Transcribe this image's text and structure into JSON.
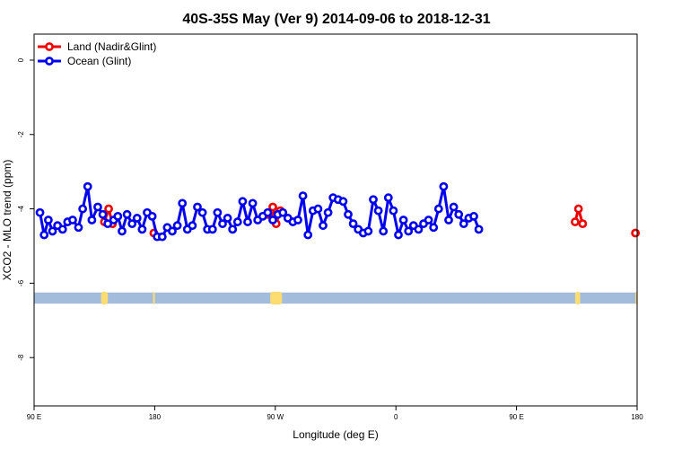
{
  "chart_data": {
    "type": "line",
    "title": "40S-35S May (Ver 9)   2014-09-06 to 2018-12-31",
    "xlabel": "Longitude (deg E)",
    "ylabel": "XCO2 - MLO trend (ppm)",
    "xlim": [
      90,
      450
    ],
    "ylim": [
      -9.3,
      0.7
    ],
    "x_ticks": [
      90,
      162,
      234,
      306,
      378,
      450
    ],
    "x_tick_labels": [
      "90 E",
      "180",
      "90 W",
      "0",
      "90 E",
      "180"
    ],
    "y_ticks": [
      0,
      -2,
      -4,
      -6,
      -8
    ],
    "y_tick_labels": [
      "0",
      "-2",
      "-4",
      "-6",
      "-8"
    ],
    "grid": false,
    "legend_position": "top-left",
    "series": [
      {
        "name": "Land (Nadir&Glint)",
        "color": "#ee0000",
        "segments": [
          [
            [
              132,
              -4.35
            ],
            [
              134.5,
              -4.0
            ],
            [
              136.8,
              -4.4
            ]
          ],
          [
            [
              161.5,
              -4.65
            ]
          ],
          [
            [
              230,
              -4.15
            ],
            [
              232.5,
              -3.95
            ],
            [
              234.5,
              -4.4
            ],
            [
              237,
              -4.05
            ]
          ],
          [
            [
              413,
              -4.35
            ],
            [
              415,
              -4.0
            ],
            [
              417.5,
              -4.4
            ]
          ],
          [
            [
              449,
              -4.65
            ]
          ]
        ]
      },
      {
        "name": "Ocean (Glint)",
        "color": "#0000ee",
        "points": [
          [
            93.5,
            -4.1
          ],
          [
            96,
            -4.7
          ],
          [
            98.5,
            -4.3
          ],
          [
            101,
            -4.6
          ],
          [
            104,
            -4.45
          ],
          [
            107,
            -4.55
          ],
          [
            110,
            -4.35
          ],
          [
            113,
            -4.3
          ],
          [
            116.5,
            -4.5
          ],
          [
            119,
            -4.0
          ],
          [
            122,
            -3.4
          ],
          [
            124.5,
            -4.3
          ],
          [
            128,
            -3.95
          ],
          [
            131,
            -4.15
          ],
          [
            134,
            -4.4
          ],
          [
            137.5,
            -4.3
          ],
          [
            140,
            -4.2
          ],
          [
            142.5,
            -4.6
          ],
          [
            145.5,
            -4.15
          ],
          [
            148.5,
            -4.4
          ],
          [
            151.5,
            -4.25
          ],
          [
            154.5,
            -4.55
          ],
          [
            157.5,
            -4.1
          ],
          [
            160.5,
            -4.2
          ],
          [
            163.5,
            -4.75
          ],
          [
            166.5,
            -4.75
          ],
          [
            169.5,
            -4.5
          ],
          [
            172.5,
            -4.6
          ],
          [
            175.5,
            -4.45
          ],
          [
            178.5,
            -3.85
          ],
          [
            181.5,
            -4.55
          ],
          [
            184.5,
            -4.45
          ],
          [
            187.5,
            -3.95
          ],
          [
            190.5,
            -4.1
          ],
          [
            193.5,
            -4.55
          ],
          [
            196.5,
            -4.55
          ],
          [
            199.5,
            -4.1
          ],
          [
            202.5,
            -4.4
          ],
          [
            205.5,
            -4.25
          ],
          [
            208.5,
            -4.55
          ],
          [
            211.5,
            -4.35
          ],
          [
            214.5,
            -3.8
          ],
          [
            217.5,
            -4.35
          ],
          [
            220.5,
            -3.85
          ],
          [
            223.5,
            -4.3
          ],
          [
            226.5,
            -4.2
          ],
          [
            229.5,
            -4.1
          ],
          [
            232.5,
            -4.3
          ],
          [
            235.5,
            -4.15
          ],
          [
            238.5,
            -4.1
          ],
          [
            241.5,
            -4.25
          ],
          [
            244.5,
            -4.35
          ],
          [
            247.5,
            -4.3
          ],
          [
            250.5,
            -3.65
          ],
          [
            253.5,
            -4.7
          ],
          [
            256.5,
            -4.05
          ],
          [
            259.5,
            -4.0
          ],
          [
            262.5,
            -4.45
          ],
          [
            265.5,
            -4.1
          ],
          [
            268.5,
            -3.7
          ],
          [
            271.5,
            -3.75
          ],
          [
            274.5,
            -3.8
          ],
          [
            277.5,
            -4.15
          ],
          [
            280.5,
            -4.4
          ],
          [
            283.5,
            -4.55
          ],
          [
            286.5,
            -4.65
          ],
          [
            289.5,
            -4.6
          ],
          [
            292.5,
            -3.75
          ],
          [
            295.5,
            -4.05
          ],
          [
            298.5,
            -4.6
          ],
          [
            301.5,
            -3.7
          ],
          [
            304.5,
            -4.05
          ],
          [
            307.5,
            -4.7
          ],
          [
            310.5,
            -4.3
          ],
          [
            313.5,
            -4.6
          ],
          [
            316.5,
            -4.45
          ],
          [
            319.5,
            -4.55
          ],
          [
            322.5,
            -4.4
          ],
          [
            325.5,
            -4.3
          ],
          [
            328.5,
            -4.5
          ],
          [
            331.5,
            -4.0
          ],
          [
            334.5,
            -3.4
          ],
          [
            337.5,
            -4.3
          ],
          [
            340.5,
            -3.95
          ],
          [
            343.5,
            -4.15
          ],
          [
            346.5,
            -4.4
          ],
          [
            349.5,
            -4.25
          ],
          [
            352.5,
            -4.2
          ],
          [
            355.5,
            -4.55
          ]
        ]
      }
    ],
    "land_strip": {
      "y_range": [
        -6.25,
        -6.55
      ],
      "ocean_color": "#a4bcdc",
      "land_color": "#fddc72",
      "land_blobs": [
        [
          130,
          134
        ],
        [
          161,
          162
        ],
        [
          231,
          238
        ],
        [
          413,
          416
        ],
        [
          449,
          450
        ]
      ]
    }
  }
}
